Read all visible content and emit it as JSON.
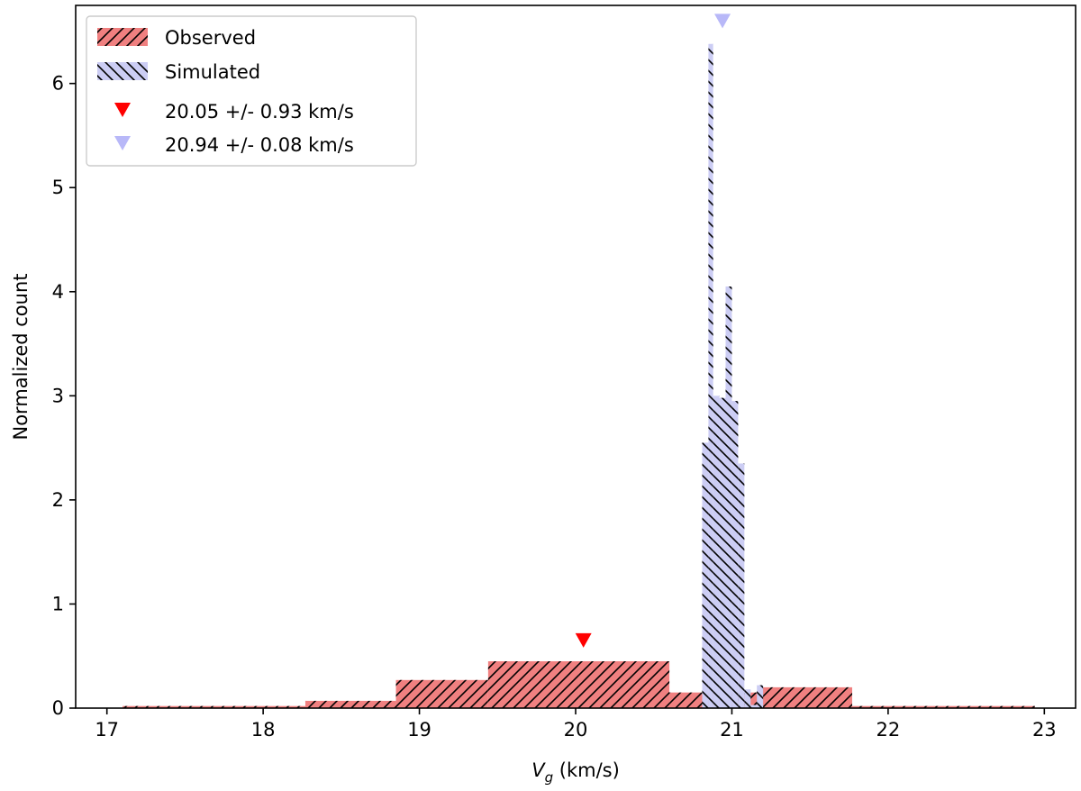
{
  "chart_data": {
    "type": "bar",
    "xlabel_main": "V",
    "xlabel_sub": "g",
    "xlabel_unit": " (km/s)",
    "ylabel": "Normalized count",
    "xlim": [
      16.8,
      23.2
    ],
    "ylim": [
      0,
      6.75
    ],
    "xticks": [
      17,
      18,
      19,
      20,
      21,
      22,
      23
    ],
    "yticks": [
      0,
      1,
      2,
      3,
      4,
      5,
      6
    ],
    "legend_position": "top-left",
    "series": [
      {
        "name": "Observed",
        "color": "#f08080",
        "hatch": "forward-diagonal",
        "bins": [
          {
            "x0": 17.1,
            "x1": 17.68,
            "y": 0.02
          },
          {
            "x0": 17.68,
            "x1": 18.27,
            "y": 0.02
          },
          {
            "x0": 18.27,
            "x1": 18.85,
            "y": 0.07
          },
          {
            "x0": 18.85,
            "x1": 19.44,
            "y": 0.27
          },
          {
            "x0": 19.44,
            "x1": 20.02,
            "y": 0.45
          },
          {
            "x0": 20.02,
            "x1": 20.6,
            "y": 0.45
          },
          {
            "x0": 20.6,
            "x1": 21.19,
            "y": 0.15
          },
          {
            "x0": 21.19,
            "x1": 21.77,
            "y": 0.2
          },
          {
            "x0": 21.77,
            "x1": 22.36,
            "y": 0.02
          },
          {
            "x0": 22.36,
            "x1": 22.94,
            "y": 0.02
          }
        ]
      },
      {
        "name": "Simulated",
        "color": "#cccdf4",
        "hatch": "back-diagonal",
        "bins": [
          {
            "x0": 20.81,
            "x1": 20.85,
            "y": 2.55
          },
          {
            "x0": 20.85,
            "x1": 20.88,
            "y": 6.38
          },
          {
            "x0": 20.88,
            "x1": 20.92,
            "y": 3.0
          },
          {
            "x0": 20.92,
            "x1": 20.96,
            "y": 2.98
          },
          {
            "x0": 20.96,
            "x1": 21.0,
            "y": 4.05
          },
          {
            "x0": 21.0,
            "x1": 21.04,
            "y": 2.95
          },
          {
            "x0": 21.04,
            "x1": 21.08,
            "y": 2.35
          },
          {
            "x0": 21.08,
            "x1": 21.12,
            "y": 0.18
          },
          {
            "x0": 21.12,
            "x1": 21.16,
            "y": 0.03
          },
          {
            "x0": 21.16,
            "x1": 21.2,
            "y": 0.22
          }
        ]
      }
    ],
    "markers": [
      {
        "label": "20.05 +/- 0.93 km/s",
        "x": 20.05,
        "y": 0.65,
        "color": "#ff0000"
      },
      {
        "label": "20.94 +/- 0.08 km/s",
        "x": 20.94,
        "y": 6.6,
        "color": "#b8b8f8"
      }
    ]
  }
}
